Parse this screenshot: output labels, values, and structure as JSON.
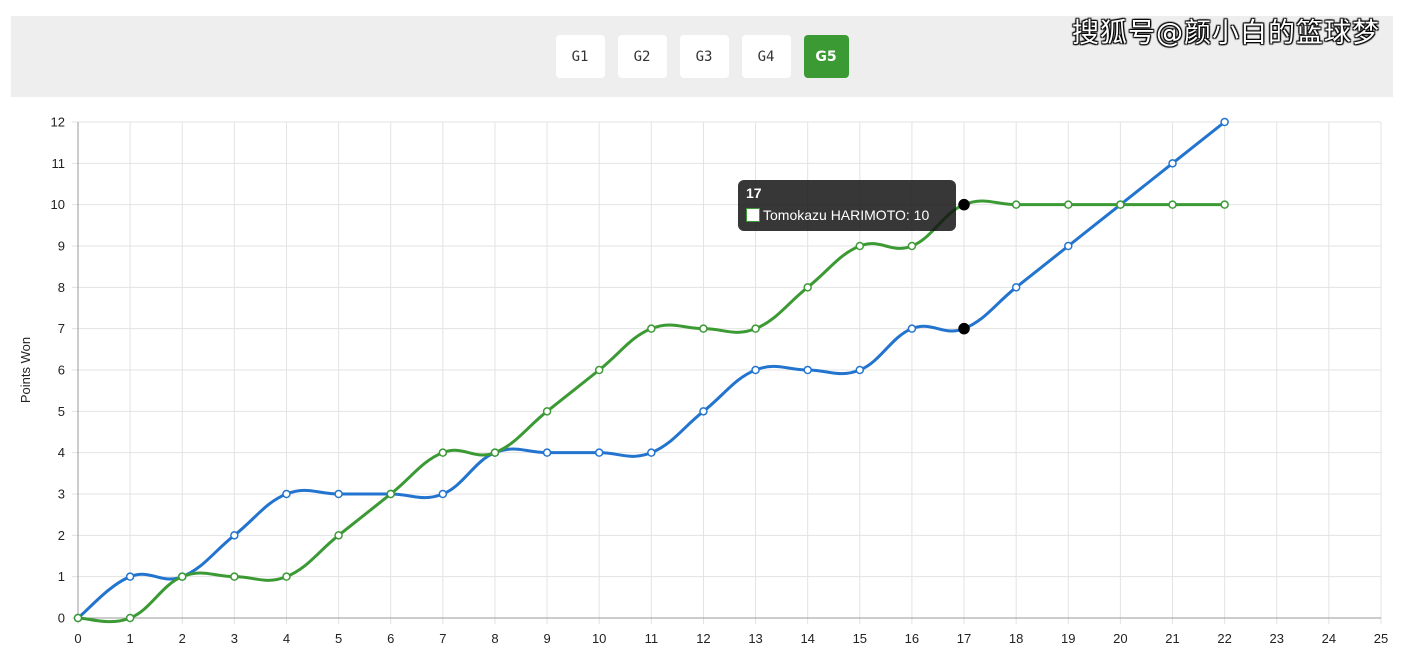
{
  "buttons": [
    {
      "label": "G1",
      "active": false
    },
    {
      "label": "G2",
      "active": false
    },
    {
      "label": "G3",
      "active": false
    },
    {
      "label": "G4",
      "active": false
    },
    {
      "label": "G5",
      "active": true
    }
  ],
  "watermark": "搜狐号@颜小白的篮球梦",
  "tooltip": {
    "title": "17",
    "line": "Tomokazu HARIMOTO: 10"
  },
  "colors": {
    "blue": "#2274cf",
    "green": "#3c9a34",
    "grid": "#e3e3e3",
    "active_button": "#3c9a34",
    "header_bg": "#eeeeee"
  },
  "chart_data": {
    "type": "line",
    "title": "",
    "xlabel": "",
    "ylabel": "Points Won",
    "xlim": [
      0,
      25
    ],
    "ylim": [
      0,
      12
    ],
    "grid": true,
    "x_ticks": [
      0,
      1,
      2,
      3,
      4,
      5,
      6,
      7,
      8,
      9,
      10,
      11,
      12,
      13,
      14,
      15,
      16,
      17,
      18,
      19,
      20,
      21,
      22,
      23,
      24,
      25
    ],
    "y_ticks": [
      0,
      1,
      2,
      3,
      4,
      5,
      6,
      7,
      8,
      9,
      10,
      11,
      12
    ],
    "x": [
      0,
      1,
      2,
      3,
      4,
      5,
      6,
      7,
      8,
      9,
      10,
      11,
      12,
      13,
      14,
      15,
      16,
      17,
      18,
      19,
      20,
      21,
      22
    ],
    "series": [
      {
        "color": "#2274cf",
        "values": [
          0,
          1,
          1,
          2,
          3,
          3,
          3,
          3,
          4,
          4,
          4,
          4,
          5,
          6,
          6,
          6,
          7,
          7,
          8,
          9,
          10,
          11,
          12
        ]
      },
      {
        "name": "Tomokazu HARIMOTO",
        "color": "#3c9a34",
        "values": [
          0,
          0,
          1,
          1,
          1,
          2,
          3,
          4,
          4,
          5,
          6,
          7,
          7,
          7,
          8,
          9,
          9,
          10,
          10,
          10,
          10,
          10,
          10
        ]
      }
    ],
    "highlight_x": 17
  }
}
